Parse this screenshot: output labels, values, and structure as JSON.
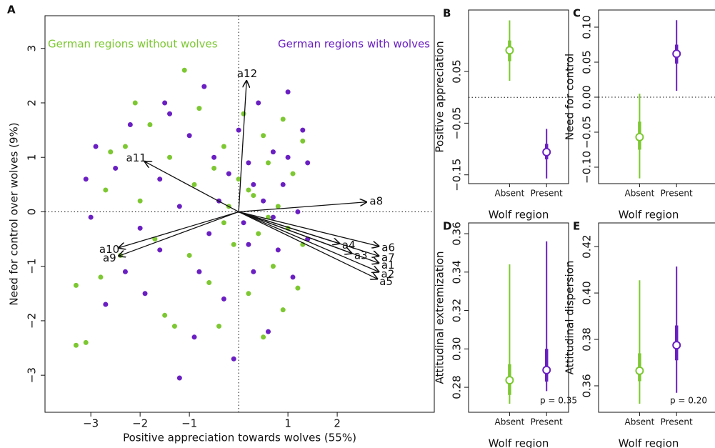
{
  "chart_data": [
    {
      "type": "biplot",
      "panel": "A",
      "x_label": "Positive appreciation towards wolves (55%)",
      "y_label": "Need for control over wolves (9%)",
      "xlim": [
        -3.93,
        3.97
      ],
      "ylim": [
        -3.68,
        3.6
      ],
      "xticks": [
        {
          "value": -3,
          "label": "−3"
        },
        {
          "value": -2,
          "label": "−2"
        },
        {
          "value": -1,
          "label": "−1"
        },
        1,
        2
      ],
      "yticks": [
        {
          "value": -3,
          "label": "−3"
        },
        {
          "value": -2,
          "label": "−2"
        },
        {
          "value": -1,
          "label": "−1"
        },
        0,
        1,
        2,
        3
      ],
      "series": [
        {
          "name": "German regions without wolves",
          "color": "#7dc832",
          "x": [
            -3.3,
            -3.3,
            -3.1,
            -2.8,
            -2.7,
            -2.6,
            -2.3,
            -2.1,
            -2.0,
            -1.8,
            -1.7,
            -1.5,
            -1.4,
            -1.1,
            -1.0,
            -0.9,
            -0.8,
            -0.6,
            -0.5,
            -0.4,
            -0.3,
            -0.2,
            -0.1,
            0.0,
            0.1,
            0.2,
            0.3,
            0.4,
            0.5,
            0.5,
            0.6,
            0.7,
            0.8,
            0.9,
            1.0,
            1.1,
            1.2,
            1.3,
            1.3,
            0.2,
            -0.3,
            0.6,
            -1.3,
            -2.4,
            0.9
          ],
          "y": [
            -1.35,
            -2.45,
            -2.4,
            -1.2,
            0.4,
            1.1,
            1.2,
            2.0,
            0.2,
            1.6,
            -0.5,
            -1.9,
            1.0,
            2.6,
            -0.8,
            0.5,
            1.9,
            -1.3,
            0.8,
            -2.1,
            1.2,
            0.1,
            -0.6,
            0.6,
            1.8,
            -1.5,
            0.3,
            -0.4,
            1.4,
            -2.3,
            0.9,
            -1.0,
            0.1,
            1.7,
            -0.3,
            0.7,
            -1.4,
            1.3,
            -0.6,
            0.4,
            -0.2,
            -0.1,
            -2.1,
            -0.8,
            -1.8
          ]
        },
        {
          "name": "German regions with wolves",
          "color": "#6a1fc2",
          "x": [
            -3.1,
            -3.0,
            -2.9,
            -2.7,
            -2.5,
            -2.2,
            -2.0,
            -1.9,
            -1.6,
            -1.5,
            -1.2,
            -1.2,
            -1.0,
            -0.9,
            -0.7,
            -0.6,
            -0.5,
            -0.3,
            -0.2,
            -0.1,
            0.0,
            0.1,
            0.2,
            0.3,
            0.4,
            0.5,
            0.6,
            0.7,
            0.8,
            0.9,
            1.0,
            1.1,
            1.2,
            1.3,
            1.4,
            0.3,
            -0.4,
            0.7,
            -2.3,
            -1.6,
            0.2,
            1.0,
            -0.8,
            1.4,
            -1.4
          ],
          "y": [
            0.6,
            -0.1,
            1.2,
            -1.7,
            0.8,
            1.6,
            -0.3,
            -1.5,
            0.6,
            2.0,
            -3.05,
            0.1,
            1.4,
            -2.3,
            2.3,
            -0.4,
            1.0,
            -1.6,
            0.7,
            -2.7,
            1.5,
            -0.2,
            0.9,
            -1.1,
            2.0,
            0.2,
            -2.2,
            1.1,
            -0.7,
            0.5,
            2.2,
            -1.2,
            0.0,
            1.5,
            -0.5,
            0.5,
            0.2,
            -0.1,
            -1.1,
            -0.7,
            -0.6,
            1.0,
            -1.1,
            0.9,
            1.8
          ]
        }
      ],
      "loadings": [
        {
          "name": "a1",
          "x": 2.84,
          "y": -0.94
        },
        {
          "name": "a2",
          "x": 2.84,
          "y": -1.1
        },
        {
          "name": "a3",
          "x": 2.29,
          "y": -0.76
        },
        {
          "name": "a4",
          "x": 2.04,
          "y": -0.58
        },
        {
          "name": "a5",
          "x": 2.81,
          "y": -1.23
        },
        {
          "name": "a6",
          "x": 2.84,
          "y": -0.63
        },
        {
          "name": "a7",
          "x": 2.84,
          "y": -0.81
        },
        {
          "name": "a8",
          "x": 2.59,
          "y": 0.18
        },
        {
          "name": "a9",
          "x": -2.43,
          "y": -0.81
        },
        {
          "name": "a10",
          "x": -2.43,
          "y": -0.66
        },
        {
          "name": "a11",
          "x": -1.9,
          "y": 0.92
        },
        {
          "name": "a12",
          "x": 0.16,
          "y": 2.4
        }
      ]
    },
    {
      "type": "interval",
      "panel": "B",
      "y_label": "Positive appreciation",
      "x_label": "Wolf region",
      "categories": [
        "Absent",
        "Present"
      ],
      "colors": [
        "#7dc832",
        "#6a1fc2"
      ],
      "values": [
        0.091,
        -0.106
      ],
      "inner": [
        [
          0.07,
          0.11
        ],
        [
          -0.12,
          -0.09
        ]
      ],
      "outer": [
        [
          0.032,
          0.149
        ],
        [
          -0.157,
          -0.061
        ]
      ],
      "ylim": [
        -0.167,
        0.169
      ],
      "yticks": [
        {
          "value": -0.15,
          "label": "−0.15"
        },
        {
          "value": -0.05,
          "label": "−0.05"
        },
        0.05
      ],
      "refline": 0
    },
    {
      "type": "interval",
      "panel": "C",
      "y_label": "Need for control",
      "x_label": "Wolf region",
      "categories": [
        "Absent",
        "Present"
      ],
      "colors": [
        "#7dc832",
        "#6a1fc2"
      ],
      "values": [
        -0.057,
        0.062
      ],
      "inner": [
        [
          -0.075,
          -0.035
        ],
        [
          0.048,
          0.075
        ]
      ],
      "outer": [
        [
          -0.116,
          0.005
        ],
        [
          0.009,
          0.11
        ]
      ],
      "ylim": [
        -0.1235,
        0.1245
      ],
      "yticks": [
        {
          "value": -0.1,
          "label": "−0.10"
        },
        {
          "value": -0.05,
          "label": "−0.05"
        },
        {
          "value": 0,
          "label": "0.00"
        },
        0.05,
        {
          "value": 0.1,
          "label": "0.10"
        }
      ],
      "refline": 0
    },
    {
      "type": "interval",
      "panel": "D",
      "y_label": "Attitudinal extremization",
      "x_label": "Wolf region",
      "categories": [
        "Absent",
        "Present"
      ],
      "colors": [
        "#7dc832",
        "#6a1fc2"
      ],
      "values": [
        0.2837,
        0.289
      ],
      "inner": [
        [
          0.276,
          0.292
        ],
        [
          0.283,
          0.3
        ]
      ],
      "outer": [
        [
          0.2714,
          0.344
        ],
        [
          0.278,
          0.356
        ]
      ],
      "ylim": [
        0.267,
        0.3656
      ],
      "yticks": [
        0.28,
        {
          "value": 0.3,
          "label": "0.30"
        },
        0.32,
        0.34,
        0.36
      ],
      "p_label": "p = 0.35"
    },
    {
      "type": "interval",
      "panel": "E",
      "y_label": "Attitudinal dispersion",
      "x_label": "Wolf region",
      "categories": [
        "Absent",
        "Present"
      ],
      "colors": [
        "#7dc832",
        "#6a1fc2"
      ],
      "values": [
        0.3665,
        0.3775
      ],
      "inner": [
        [
          0.362,
          0.374
        ],
        [
          0.371,
          0.386
        ]
      ],
      "outer": [
        [
          0.3523,
          0.4055
        ],
        [
          0.357,
          0.4114
        ]
      ],
      "ylim": [
        0.3486,
        0.4302
      ],
      "yticks": [
        0.36,
        0.38,
        {
          "value": 0.4,
          "label": "0.40"
        },
        0.42
      ],
      "p_label": "p = 0.20"
    }
  ]
}
